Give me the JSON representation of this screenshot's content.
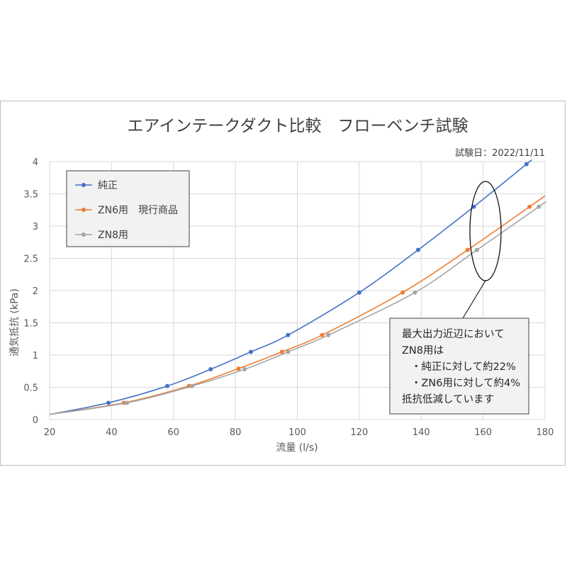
{
  "chart_data": {
    "type": "line",
    "title": "エアインテークダクト比較　フローベンチ試験",
    "subtitle": "試験日：2022/11/11",
    "xlabel": "流量 (l/s)",
    "ylabel": "通気抵抗 (kPa)",
    "xlim": [
      20,
      180
    ],
    "ylim": [
      0,
      4
    ],
    "x_ticks": [
      20,
      40,
      60,
      80,
      100,
      120,
      140,
      160,
      180
    ],
    "y_ticks": [
      0,
      0.5,
      1,
      1.5,
      2,
      2.5,
      3,
      3.5,
      4
    ],
    "x_tick_labels": [
      "20",
      "40",
      "60",
      "80",
      "100",
      "120",
      "140",
      "160",
      "180"
    ],
    "y_tick_labels": [
      "0",
      "0.5",
      "1",
      "1.5",
      "2",
      "2.5",
      "3",
      "3.5",
      "4"
    ],
    "grid": true,
    "legend_position": "top-left",
    "series": [
      {
        "name": "純正",
        "color": "#4472C4",
        "x": [
          39,
          58,
          72,
          85,
          97,
          120,
          139,
          157,
          174
        ],
        "y": [
          0.26,
          0.52,
          0.78,
          1.05,
          1.31,
          1.97,
          2.63,
          3.3,
          3.96
        ]
      },
      {
        "name": "ZN6用　現行商品",
        "color": "#ED7D31",
        "x": [
          44,
          65,
          81,
          95,
          108,
          134,
          155,
          175
        ],
        "y": [
          0.26,
          0.52,
          0.79,
          1.05,
          1.31,
          1.97,
          2.63,
          3.3
        ]
      },
      {
        "name": "ZN8用",
        "color": "#A5A5A5",
        "x": [
          45,
          66,
          83,
          97,
          110,
          138,
          158,
          178
        ],
        "y": [
          0.26,
          0.52,
          0.78,
          1.05,
          1.31,
          1.97,
          2.63,
          3.3
        ]
      }
    ],
    "annotation": {
      "lines": [
        "最大出力近辺において",
        "ZN8用は",
        "・純正に対して約22%",
        "・ZN6用に対して約4%",
        "抵抗低減しています"
      ]
    }
  }
}
